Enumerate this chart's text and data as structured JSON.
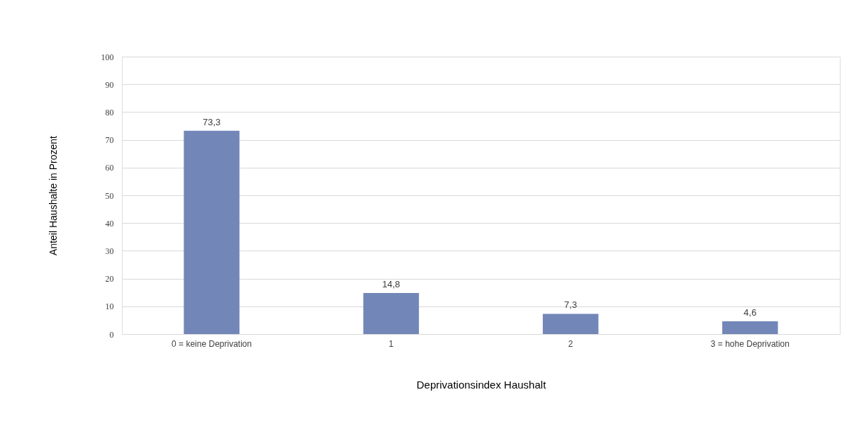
{
  "chart_data": {
    "type": "bar",
    "xlabel": "Deprivationsindex  Haushalt",
    "ylabel": "Anteil Haushalte in Prozent",
    "categories": [
      "0 = keine Deprivation",
      "1",
      "2",
      "3 = hohe Deprivation"
    ],
    "values": [
      73.3,
      14.8,
      7.3,
      4.6
    ],
    "value_labels": [
      "73,3",
      "14,8",
      "7,3",
      "4,6"
    ],
    "color": "#7286b8",
    "ylim": [
      0,
      100
    ],
    "yticks": [
      0,
      10,
      20,
      30,
      40,
      50,
      60,
      70,
      80,
      90,
      100
    ],
    "grid": "y"
  }
}
